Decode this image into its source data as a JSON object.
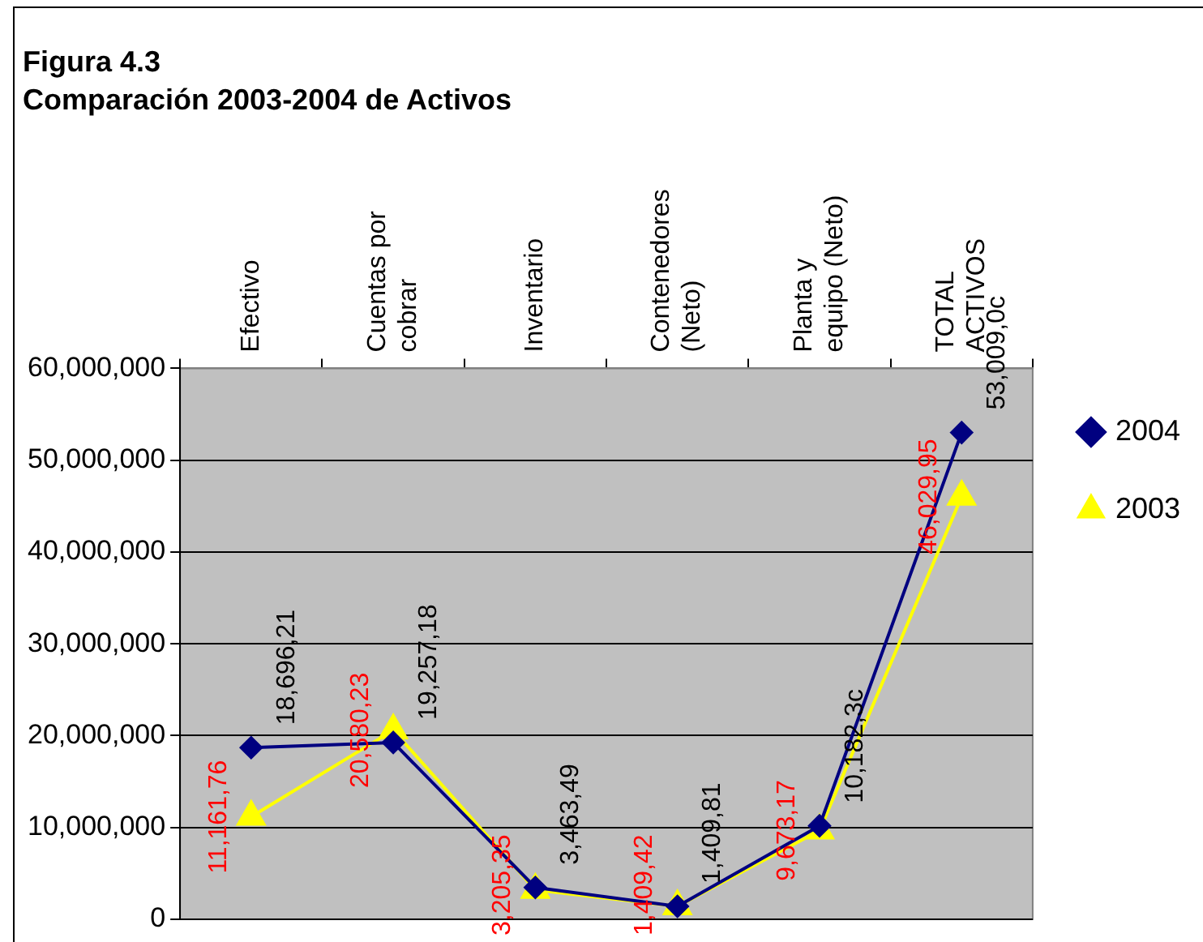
{
  "chart_data": {
    "type": "line",
    "title": "Figura 4.3",
    "subtitle": "Comparación 2003-2004 de Activos",
    "categories": [
      "Efectivo",
      "Cuentas por cobrar",
      "Inventario",
      "Contenedores (Neto)",
      "Planta y equipo (Neto)",
      "TOTAL ACTIVOS"
    ],
    "series": [
      {
        "name": "2004",
        "color": "#000080",
        "marker": "diamond",
        "values": [
          18696210,
          19257180,
          3463490,
          1409810,
          10182300,
          53009000
        ],
        "value_labels": [
          "18,696,21",
          "19,257,18",
          "3,463,49",
          "1,409,81",
          "10,182,3c",
          "53,009,0c"
        ]
      },
      {
        "name": "2003",
        "color": "#ffff00",
        "marker": "triangle",
        "values": [
          11161760,
          20580230,
          3205350,
          1409420,
          9673170,
          46029950
        ],
        "value_labels": [
          "11,161,76",
          "20,580,23",
          "3,205,35",
          "1,409,42",
          "9,673,17",
          "46,029,95"
        ]
      }
    ],
    "ylim": [
      0,
      60000000
    ],
    "yticks": [
      0,
      {
        "value": 10000000,
        "label": "10,000,000"
      },
      {
        "value": 20000000,
        "label": "20,000,000"
      },
      {
        "value": 30000000,
        "label": "30,000,000"
      },
      {
        "value": 40000000,
        "label": "40,000,000"
      },
      {
        "value": 50000000,
        "label": "50,000,000"
      },
      {
        "value": 60000000,
        "label": "60,000,000"
      }
    ],
    "grid": "y",
    "legend": "right"
  }
}
